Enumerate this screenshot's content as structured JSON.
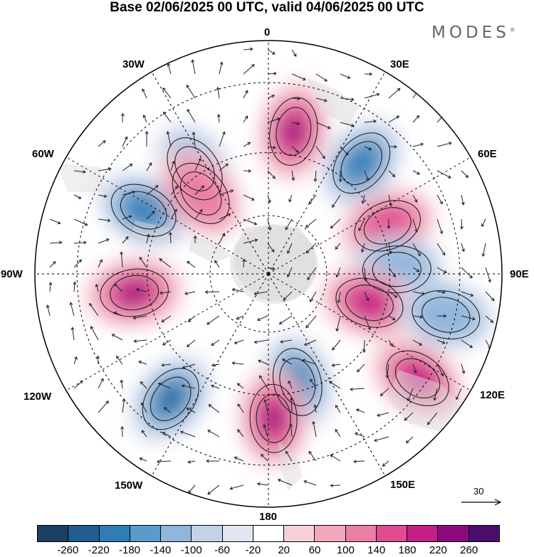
{
  "title": "Base 02/06/2025 00 UTC, valid 04/06/2025 00 UTC",
  "brand": "MODES",
  "brand_mark": "®",
  "longitude_labels": {
    "lon_0": "0",
    "lon_30e": "30E",
    "lon_60e": "60E",
    "lon_90e": "90E",
    "lon_120e": "120E",
    "lon_150e": "150E",
    "lon_180": "180",
    "lon_150w": "150W",
    "lon_120w": "120W",
    "lon_90w": "90W",
    "lon_60w": "60W",
    "lon_30w": "30W"
  },
  "reference_vector": "30",
  "colorbar": {
    "colors": [
      "#1b3f63",
      "#205d8e",
      "#2f7db5",
      "#5b9bcb",
      "#8fb6dc",
      "#c4d2e8",
      "#e4e6f1",
      "#ffffff",
      "#f6d2d8",
      "#f2a9bd",
      "#ea7fa6",
      "#df4c92",
      "#c41f84",
      "#8d0a7c",
      "#4b0d6c"
    ],
    "tick_labels": [
      "-260",
      "-220",
      "-180",
      "-140",
      "-100",
      "-60",
      "-20",
      "20",
      "60",
      "100",
      "140",
      "180",
      "220",
      "260"
    ]
  },
  "anomaly_centers": [
    {
      "kind": "positive",
      "lon_deg": 10,
      "colat": 0.62,
      "level": 5
    },
    {
      "kind": "negative",
      "lon_deg": 40,
      "colat": 0.62,
      "level": 4
    },
    {
      "kind": "positive",
      "lon_deg": 68,
      "colat": 0.55,
      "level": 3
    },
    {
      "kind": "negative",
      "lon_deg": 88,
      "colat": 0.55,
      "level": 2
    },
    {
      "kind": "positive",
      "lon_deg": 106,
      "colat": 0.45,
      "level": 4
    },
    {
      "kind": "negative",
      "lon_deg": 103,
      "colat": 0.78,
      "level": 2
    },
    {
      "kind": "positive",
      "lon_deg": 125,
      "colat": 0.78,
      "level": 4
    },
    {
      "kind": "negative",
      "lon_deg": 165,
      "colat": 0.48,
      "level": 4
    },
    {
      "kind": "positive",
      "lon_deg": 178,
      "colat": 0.62,
      "level": 5
    },
    {
      "kind": "negative",
      "lon_deg": 218,
      "colat": 0.68,
      "level": 5
    },
    {
      "kind": "positive",
      "lon_deg": 262,
      "colat": 0.58,
      "level": 5
    },
    {
      "kind": "negative",
      "lon_deg": 297,
      "colat": 0.6,
      "level": 4
    },
    {
      "kind": "negative",
      "lon_deg": 325,
      "colat": 0.55,
      "level": 2
    },
    {
      "kind": "positive",
      "lon_deg": 320,
      "colat": 0.45,
      "level": 2
    }
  ]
}
